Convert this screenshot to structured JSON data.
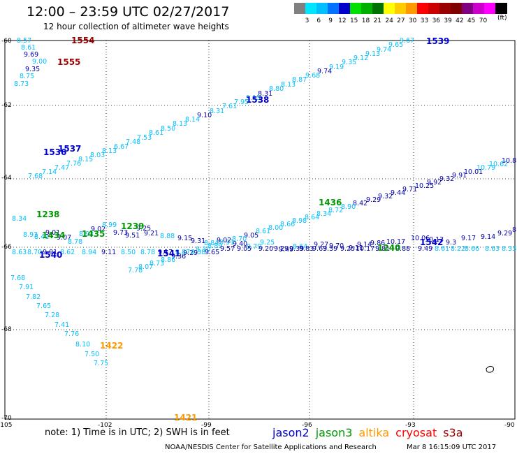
{
  "header": {
    "title": "12:00 – 23:59 UTC 02/27/2017",
    "subtitle": "12 hour collection of altimeter wave heights"
  },
  "scale": {
    "colors": [
      "#808080",
      "#00e5ff",
      "#00bfff",
      "#0072ff",
      "#0000cc",
      "#00e000",
      "#00b000",
      "#007000",
      "#ffff00",
      "#ffcc00",
      "#ff9900",
      "#ff0000",
      "#cc0000",
      "#990000",
      "#800000",
      "#800080",
      "#cc00cc",
      "#ff00ff",
      "#000000"
    ],
    "labels": [
      "3",
      "6",
      "9",
      "12",
      "15",
      "18",
      "21",
      "24",
      "27",
      "30",
      "33",
      "36",
      "39",
      "42",
      "45",
      "70"
    ],
    "unit": "(ft)"
  },
  "axes": {
    "lat_labels": [
      "-60",
      "-62",
      "-64",
      "-66",
      "-68",
      "-70"
    ],
    "lon_labels": [
      "-105",
      "-102",
      "-99",
      "-96",
      "-93",
      "-90"
    ]
  },
  "colors": {
    "jason2": "#0000cc",
    "jason3": "#009900",
    "altika": "#ff9900",
    "cryosat": "#ff0000",
    "s3a": "#990000",
    "light": "#00bfff",
    "dark": "#0000aa"
  },
  "tracks": {
    "values": [
      {
        "t": "8.57",
        "c": "light"
      },
      {
        "t": "8.61",
        "c": "light"
      },
      {
        "t": "9.69",
        "c": "dark"
      },
      {
        "t": "9.00",
        "c": "light"
      },
      {
        "t": "9.35",
        "c": "dark"
      },
      {
        "t": "8.75",
        "c": "light"
      },
      {
        "t": "8.73",
        "c": "light"
      },
      {
        "t": "9.67",
        "c": "light"
      },
      {
        "t": "9.65",
        "c": "light"
      },
      {
        "t": "9.74",
        "c": "light"
      },
      {
        "t": "9.13",
        "c": "light"
      },
      {
        "t": "9.12",
        "c": "light"
      },
      {
        "t": "9.35",
        "c": "light"
      },
      {
        "t": "9.19",
        "c": "light"
      },
      {
        "t": "9.74",
        "c": "dark"
      },
      {
        "t": "9.68",
        "c": "light"
      },
      {
        "t": "8.87",
        "c": "light"
      },
      {
        "t": "8.13",
        "c": "light"
      },
      {
        "t": "8.80",
        "c": "light"
      },
      {
        "t": "8.31",
        "c": "dark"
      },
      {
        "t": "9.15",
        "c": "light"
      },
      {
        "t": "7.95",
        "c": "light"
      },
      {
        "t": "7.61",
        "c": "light"
      },
      {
        "t": "8.31",
        "c": "light"
      },
      {
        "t": "9.10",
        "c": "dark"
      },
      {
        "t": "8.14",
        "c": "light"
      },
      {
        "t": "8.13",
        "c": "light"
      },
      {
        "t": "8.50",
        "c": "light"
      },
      {
        "t": "8.61",
        "c": "light"
      },
      {
        "t": "7.53",
        "c": "light"
      },
      {
        "t": "7.48",
        "c": "light"
      },
      {
        "t": "6.67",
        "c": "light"
      },
      {
        "t": "8.13",
        "c": "light"
      },
      {
        "t": "8.03",
        "c": "light"
      },
      {
        "t": "8.15",
        "c": "light"
      },
      {
        "t": "7.76",
        "c": "light"
      },
      {
        "t": "7.47",
        "c": "light"
      },
      {
        "t": "7.14",
        "c": "light"
      },
      {
        "t": "7.68",
        "c": "light"
      },
      {
        "t": "10.8",
        "c": "dark"
      },
      {
        "t": "10.62",
        "c": "light"
      },
      {
        "t": "10.79",
        "c": "light"
      },
      {
        "t": "10.01",
        "c": "dark"
      },
      {
        "t": "9.91",
        "c": "dark"
      },
      {
        "t": "9.32",
        "c": "dark"
      },
      {
        "t": "9.92",
        "c": "dark"
      },
      {
        "t": "10.25",
        "c": "dark"
      },
      {
        "t": "9.71",
        "c": "dark"
      },
      {
        "t": "9.44",
        "c": "dark"
      },
      {
        "t": "9.32",
        "c": "dark"
      },
      {
        "t": "9.29",
        "c": "dark"
      },
      {
        "t": "8.42",
        "c": "dark"
      },
      {
        "t": "8.90",
        "c": "light"
      },
      {
        "t": "8.72",
        "c": "light"
      },
      {
        "t": "8.34",
        "c": "light"
      },
      {
        "t": "8.64",
        "c": "light"
      },
      {
        "t": "8.98",
        "c": "light"
      },
      {
        "t": "8.66",
        "c": "light"
      },
      {
        "t": "8.00",
        "c": "light"
      },
      {
        "t": "8.61",
        "c": "light"
      },
      {
        "t": "9.05",
        "c": "dark"
      },
      {
        "t": "8.70",
        "c": "light"
      },
      {
        "t": "8.91",
        "c": "light"
      },
      {
        "t": "8.89",
        "c": "light"
      },
      {
        "t": "8.30",
        "c": "light"
      },
      {
        "t": "9.29",
        "c": "dark"
      },
      {
        "t": "9.36",
        "c": "dark"
      },
      {
        "t": "8.86",
        "c": "light"
      },
      {
        "t": "8.73",
        "c": "light"
      },
      {
        "t": "8.07",
        "c": "light"
      },
      {
        "t": "7.78",
        "c": "light"
      },
      {
        "t": "8.34",
        "c": "light"
      },
      {
        "t": "8.93",
        "c": "light"
      },
      {
        "t": "8.41",
        "c": "light"
      },
      {
        "t": "9.01",
        "c": "dark"
      },
      {
        "t": "9.07",
        "c": "dark"
      },
      {
        "t": "8.78",
        "c": "light"
      },
      {
        "t": "8.92",
        "c": "light"
      },
      {
        "t": "9.02",
        "c": "dark"
      },
      {
        "t": "8.99",
        "c": "light"
      },
      {
        "t": "9.73",
        "c": "dark"
      },
      {
        "t": "9.51",
        "c": "dark"
      },
      {
        "t": "9.25",
        "c": "dark"
      },
      {
        "t": "9.21",
        "c": "dark"
      },
      {
        "t": "8.88",
        "c": "light"
      },
      {
        "t": "9.15",
        "c": "dark"
      },
      {
        "t": "9.31",
        "c": "dark"
      },
      {
        "t": "8.84",
        "c": "light"
      },
      {
        "t": "9.02",
        "c": "dark"
      },
      {
        "t": "9.40",
        "c": "dark"
      },
      {
        "t": "9.79",
        "c": "light"
      },
      {
        "t": "9.25",
        "c": "light"
      },
      {
        "t": "9.49",
        "c": "dark"
      },
      {
        "t": "8.64",
        "c": "light"
      },
      {
        "t": "9.27",
        "c": "dark"
      },
      {
        "t": "9.70",
        "c": "dark"
      },
      {
        "t": "9.11",
        "c": "dark"
      },
      {
        "t": "9.14",
        "c": "dark"
      },
      {
        "t": "9.86",
        "c": "dark"
      },
      {
        "t": "10.17",
        "c": "dark"
      },
      {
        "t": "10.06",
        "c": "dark"
      },
      {
        "t": "10.13",
        "c": "dark"
      },
      {
        "t": "9.3",
        "c": "dark"
      },
      {
        "t": "9.17",
        "c": "dark"
      },
      {
        "t": "9.14",
        "c": "dark"
      },
      {
        "t": "9.29",
        "c": "dark"
      },
      {
        "t": "8.27",
        "c": "dark"
      },
      {
        "t": "8.63",
        "c": "light"
      },
      {
        "t": "8.70",
        "c": "light"
      },
      {
        "t": "9.91",
        "c": "dark"
      },
      {
        "t": "8.62",
        "c": "light"
      },
      {
        "t": "8.94",
        "c": "light"
      },
      {
        "t": "9.11",
        "c": "dark"
      },
      {
        "t": "8.50",
        "c": "light"
      },
      {
        "t": "8.78",
        "c": "light"
      },
      {
        "t": "9.17",
        "c": "dark"
      },
      {
        "t": "8.87",
        "c": "light"
      },
      {
        "t": "8.38",
        "c": "light"
      },
      {
        "t": "9.65",
        "c": "dark"
      },
      {
        "t": "9.57",
        "c": "dark"
      },
      {
        "t": "9.05",
        "c": "dark"
      },
      {
        "t": "9.20",
        "c": "dark"
      },
      {
        "t": "9.29",
        "c": "dark"
      },
      {
        "t": "9.39",
        "c": "dark"
      },
      {
        "t": "9.83",
        "c": "dark"
      },
      {
        "t": "9.63",
        "c": "dark"
      },
      {
        "t": "9.39",
        "c": "dark"
      },
      {
        "t": "9.25",
        "c": "dark"
      },
      {
        "t": "10.17",
        "c": "dark"
      },
      {
        "t": "9.81",
        "c": "dark"
      },
      {
        "t": "9.88",
        "c": "dark"
      },
      {
        "t": "9.49",
        "c": "dark"
      },
      {
        "t": "8.61",
        "c": "light"
      },
      {
        "t": "8.22",
        "c": "light"
      },
      {
        "t": "8.66",
        "c": "light"
      },
      {
        "t": "8.63",
        "c": "light"
      },
      {
        "t": "8.33",
        "c": "light"
      },
      {
        "t": "7.68",
        "c": "light"
      },
      {
        "t": "7.91",
        "c": "light"
      },
      {
        "t": "7.82",
        "c": "light"
      },
      {
        "t": "7.65",
        "c": "light"
      },
      {
        "t": "7.28",
        "c": "light"
      },
      {
        "t": "7.41",
        "c": "light"
      },
      {
        "t": "7.76",
        "c": "light"
      },
      {
        "t": "8.10",
        "c": "light"
      },
      {
        "t": "7.50",
        "c": "light"
      },
      {
        "t": "7.75",
        "c": "light"
      }
    ],
    "labels": [
      {
        "t": "1554",
        "c": "s3a"
      },
      {
        "t": "1555",
        "c": "s3a"
      },
      {
        "t": "1539",
        "c": "jason2"
      },
      {
        "t": "1538",
        "c": "jason2"
      },
      {
        "t": "1537",
        "c": "jason2"
      },
      {
        "t": "1536",
        "c": "jason2"
      },
      {
        "t": "1436",
        "c": "jason3"
      },
      {
        "t": "1238",
        "c": "jason3"
      },
      {
        "t": "1434",
        "c": "jason3"
      },
      {
        "t": "1435",
        "c": "jason3"
      },
      {
        "t": "1239",
        "c": "jason3"
      },
      {
        "t": "1540",
        "c": "jason2"
      },
      {
        "t": "1541",
        "c": "jason2"
      },
      {
        "t": "1240",
        "c": "jason3"
      },
      {
        "t": "1542",
        "c": "jason2"
      },
      {
        "t": "1422",
        "c": "altika"
      },
      {
        "t": "1421",
        "c": "altika"
      }
    ]
  },
  "footer": {
    "note": "note: 1) Time is in UTC; 2) SWH is in feet",
    "legend": [
      {
        "t": "jason2",
        "c": "jason2"
      },
      {
        "t": "jason3",
        "c": "jason3"
      },
      {
        "t": "altika",
        "c": "altika"
      },
      {
        "t": "cryosat",
        "c": "cryosat"
      },
      {
        "t": "s3a",
        "c": "s3a"
      }
    ],
    "credit": "NOAA/NESDIS Center for Satellite Applications and Research",
    "time": "Mar  8 16:15:09 UTC 2017"
  }
}
